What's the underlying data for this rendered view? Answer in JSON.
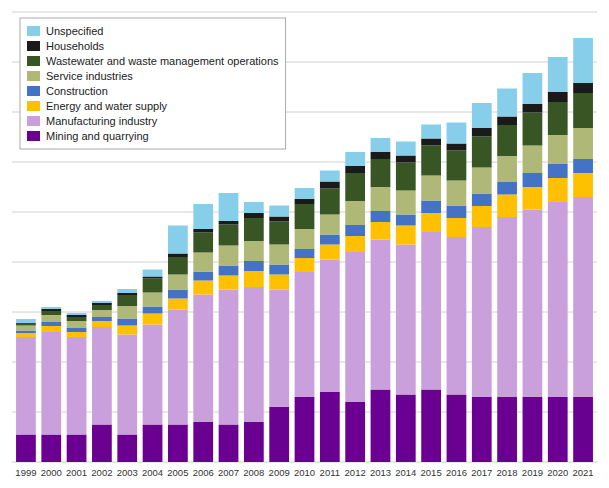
{
  "chart_data": {
    "type": "bar",
    "stacked": true,
    "categories": [
      "1999",
      "2000",
      "2001",
      "2002",
      "2003",
      "2004",
      "2005",
      "2006",
      "2007",
      "2008",
      "2009",
      "2010",
      "2011",
      "2012",
      "2013",
      "2014",
      "2015",
      "2016",
      "2017",
      "2018",
      "2019",
      "2020",
      "2021"
    ],
    "series": [
      {
        "name": "Mining and quarrying",
        "color": "#6A0091",
        "values": [
          55,
          55,
          55,
          75,
          55,
          75,
          75,
          80,
          75,
          80,
          110,
          130,
          140,
          120,
          145,
          135,
          145,
          135,
          130,
          130,
          130,
          130,
          130
        ]
      },
      {
        "name": "Manufacturing industry",
        "color": "#C9A0DC",
        "values": [
          195,
          205,
          195,
          195,
          200,
          200,
          230,
          255,
          270,
          270,
          235,
          250,
          265,
          300,
          300,
          300,
          315,
          315,
          340,
          360,
          375,
          390,
          400
        ]
      },
      {
        "name": "Energy and water supply",
        "color": "#FFC000",
        "values": [
          8,
          12,
          10,
          12,
          18,
          22,
          22,
          28,
          28,
          32,
          30,
          28,
          30,
          32,
          35,
          38,
          38,
          38,
          42,
          45,
          45,
          48,
          48
        ]
      },
      {
        "name": "Construction",
        "color": "#4472C4",
        "values": [
          5,
          8,
          8,
          8,
          14,
          14,
          18,
          18,
          20,
          20,
          20,
          18,
          20,
          22,
          22,
          22,
          25,
          25,
          25,
          25,
          28,
          28,
          28
        ]
      },
      {
        "name": "Service industries",
        "color": "#B0B878",
        "values": [
          10,
          14,
          14,
          14,
          25,
          28,
          30,
          38,
          40,
          40,
          40,
          40,
          40,
          48,
          48,
          48,
          50,
          50,
          52,
          52,
          55,
          58,
          62
        ]
      },
      {
        "name": "Wastewater and waste management operations",
        "color": "#375623",
        "values": [
          5,
          8,
          8,
          10,
          22,
          28,
          35,
          40,
          42,
          46,
          46,
          50,
          52,
          56,
          56,
          56,
          60,
          60,
          62,
          62,
          66,
          66,
          70
        ]
      },
      {
        "name": "Households",
        "color": "#1A1A1A",
        "values": [
          0,
          4,
          4,
          4,
          4,
          4,
          7,
          7,
          7,
          10,
          10,
          10,
          14,
          14,
          14,
          14,
          14,
          14,
          17,
          17,
          17,
          20,
          20
        ]
      },
      {
        "name": "Unspecified",
        "color": "#87CEEB",
        "values": [
          8,
          4,
          4,
          4,
          8,
          14,
          56,
          50,
          56,
          22,
          22,
          22,
          22,
          28,
          28,
          28,
          28,
          42,
          50,
          56,
          62,
          70,
          90
        ]
      }
    ],
    "ylim": [
      0,
      900
    ],
    "yticks": [
      0,
      100,
      200,
      300,
      400,
      500,
      600,
      700,
      800,
      900
    ],
    "grid": true,
    "tick_labels": "x",
    "legend": "upper-left"
  }
}
